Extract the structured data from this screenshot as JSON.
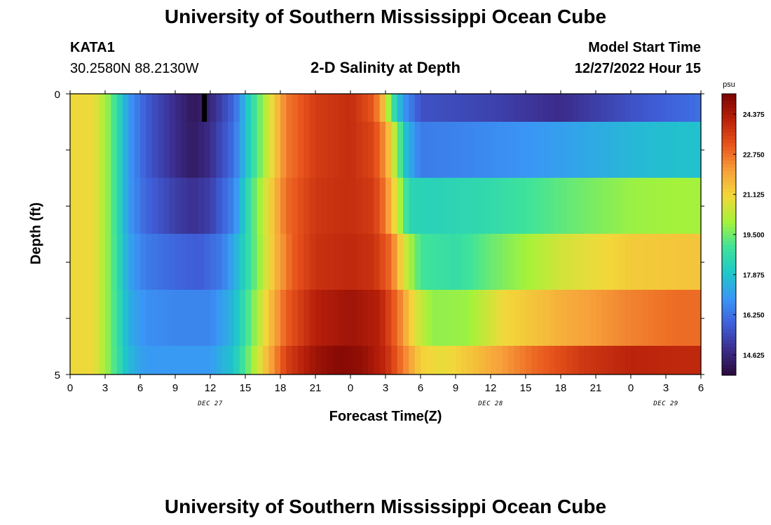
{
  "header": {
    "title": "University of Southern Mississippi Ocean Cube",
    "station_id": "KATA1",
    "coordinates": "30.2580N  88.2130W",
    "subtitle": "2-D Salinity at Depth",
    "model_start_label": "Model Start Time",
    "model_start_value": "12/27/2022 Hour 15"
  },
  "footer": {
    "title": "University of Southern Mississippi Ocean Cube"
  },
  "colors": {
    "palette": [
      "#2c0a3a",
      "#3b2d8c",
      "#3f5fd9",
      "#3a96f6",
      "#1ec8c8",
      "#3fe39a",
      "#a6f23a",
      "#f2d83a",
      "#f7a03a",
      "#e8541c",
      "#b8200a",
      "#7a0403"
    ]
  },
  "chart_data": {
    "type": "heatmap",
    "xlabel": "Forecast Time(Z)",
    "ylabel": "Depth (ft)",
    "x_ticks": [
      "0",
      "3",
      "6",
      "9",
      "12",
      "15",
      "18",
      "21",
      "0",
      "3",
      "6",
      "9",
      "12",
      "15",
      "18",
      "21",
      "0",
      "3",
      "6"
    ],
    "date_labels": [
      {
        "text": "DEC 27",
        "hour": 12
      },
      {
        "text": "DEC 28",
        "hour": 36
      },
      {
        "text": "DEC 29",
        "hour": 51
      }
    ],
    "y_ticks": [
      "0",
      "5"
    ],
    "ylim": [
      0,
      5
    ],
    "xlim_hours": [
      0,
      54
    ],
    "colorbar_unit": "psu",
    "colorbar_ticks": [
      "24.375",
      "22.750",
      "21.125",
      "19.500",
      "17.875",
      "16.250",
      "14.625"
    ],
    "value_range": [
      13.8,
      25.2
    ],
    "missing_cell": {
      "hour": 11.5,
      "layer": 0
    },
    "layer_profiles": [
      [
        [
          0,
          21.0
        ],
        [
          2,
          21.0
        ],
        [
          3.5,
          19.5
        ],
        [
          5,
          17.0
        ],
        [
          6.5,
          15.8
        ],
        [
          9,
          14.8
        ],
        [
          10.5,
          14.2
        ],
        [
          12,
          14.6
        ],
        [
          14,
          16.0
        ],
        [
          15.5,
          18.5
        ],
        [
          17,
          20.6
        ],
        [
          18.5,
          22.6
        ],
        [
          21,
          23.6
        ],
        [
          24,
          23.9
        ],
        [
          26,
          23.1
        ],
        [
          26.8,
          21.6
        ],
        [
          27.5,
          19.2
        ],
        [
          28.5,
          17.0
        ],
        [
          30,
          15.6
        ],
        [
          36,
          15.3
        ],
        [
          42,
          14.8
        ],
        [
          48,
          15.6
        ],
        [
          52,
          16.0
        ],
        [
          54,
          16.2
        ]
      ],
      [
        [
          0,
          21.0
        ],
        [
          2,
          21.0
        ],
        [
          3.5,
          19.5
        ],
        [
          5,
          17.0
        ],
        [
          6.5,
          15.8
        ],
        [
          9,
          14.8
        ],
        [
          10.5,
          14.3
        ],
        [
          12,
          14.8
        ],
        [
          14,
          16.2
        ],
        [
          15.5,
          18.5
        ],
        [
          17,
          20.6
        ],
        [
          18.5,
          22.6
        ],
        [
          21,
          23.6
        ],
        [
          24,
          23.9
        ],
        [
          26,
          23.4
        ],
        [
          27,
          22.2
        ],
        [
          28,
          19.8
        ],
        [
          28.8,
          17.6
        ],
        [
          30,
          16.4
        ],
        [
          36,
          16.7
        ],
        [
          42,
          17.1
        ],
        [
          48,
          17.6
        ],
        [
          52,
          17.8
        ],
        [
          54,
          17.8
        ]
      ],
      [
        [
          0,
          21.0
        ],
        [
          2,
          21.0
        ],
        [
          3.5,
          19.5
        ],
        [
          5,
          17.0
        ],
        [
          6.5,
          16.0
        ],
        [
          9,
          15.2
        ],
        [
          10.5,
          14.9
        ],
        [
          12,
          15.2
        ],
        [
          14,
          16.6
        ],
        [
          15.5,
          19.0
        ],
        [
          17,
          21.0
        ],
        [
          18.5,
          22.8
        ],
        [
          21,
          23.7
        ],
        [
          24,
          23.9
        ],
        [
          26,
          23.6
        ],
        [
          27,
          22.6
        ],
        [
          28,
          20.6
        ],
        [
          29,
          18.4
        ],
        [
          31,
          18.3
        ],
        [
          36,
          18.6
        ],
        [
          42,
          19.3
        ],
        [
          48,
          19.9
        ],
        [
          52,
          20.0
        ],
        [
          54,
          20.0
        ]
      ],
      [
        [
          0,
          21.0
        ],
        [
          2,
          21.0
        ],
        [
          3.5,
          19.5
        ],
        [
          5,
          17.2
        ],
        [
          6.5,
          16.4
        ],
        [
          9,
          16.0
        ],
        [
          11,
          15.8
        ],
        [
          13,
          16.4
        ],
        [
          14.5,
          17.8
        ],
        [
          16,
          19.6
        ],
        [
          17.5,
          21.6
        ],
        [
          19,
          23.0
        ],
        [
          21,
          23.8
        ],
        [
          24,
          24.0
        ],
        [
          26,
          23.8
        ],
        [
          27.5,
          22.8
        ],
        [
          28.5,
          20.8
        ],
        [
          30,
          19.0
        ],
        [
          33,
          18.7
        ],
        [
          36,
          19.4
        ],
        [
          42,
          20.6
        ],
        [
          48,
          21.3
        ],
        [
          52,
          21.4
        ],
        [
          54,
          21.4
        ]
      ],
      [
        [
          0,
          21.0
        ],
        [
          2,
          21.0
        ],
        [
          3.5,
          19.5
        ],
        [
          5,
          17.4
        ],
        [
          6.5,
          16.8
        ],
        [
          9,
          16.6
        ],
        [
          12,
          16.6
        ],
        [
          14,
          17.6
        ],
        [
          15.5,
          19.4
        ],
        [
          17,
          21.4
        ],
        [
          18.5,
          23.0
        ],
        [
          21,
          24.2
        ],
        [
          24,
          24.6
        ],
        [
          26.5,
          24.2
        ],
        [
          28,
          22.8
        ],
        [
          29.5,
          20.8
        ],
        [
          31,
          19.8
        ],
        [
          34,
          19.9
        ],
        [
          37,
          21.0
        ],
        [
          42,
          21.8
        ],
        [
          48,
          22.5
        ],
        [
          52,
          22.8
        ],
        [
          54,
          22.8
        ]
      ],
      [
        [
          0,
          21.0
        ],
        [
          2,
          21.0
        ],
        [
          3.5,
          19.5
        ],
        [
          5,
          17.6
        ],
        [
          6.5,
          17.0
        ],
        [
          9,
          17.0
        ],
        [
          12,
          17.0
        ],
        [
          14,
          17.9
        ],
        [
          15.5,
          19.8
        ],
        [
          17,
          21.8
        ],
        [
          18.5,
          23.5
        ],
        [
          21,
          24.6
        ],
        [
          23,
          25.0
        ],
        [
          25,
          24.8
        ],
        [
          27,
          24.0
        ],
        [
          28.5,
          22.6
        ],
        [
          30,
          21.2
        ],
        [
          32,
          20.9
        ],
        [
          35,
          21.6
        ],
        [
          40,
          22.9
        ],
        [
          44,
          23.7
        ],
        [
          48,
          24.1
        ],
        [
          52,
          24.0
        ],
        [
          54,
          24.0
        ]
      ]
    ]
  }
}
